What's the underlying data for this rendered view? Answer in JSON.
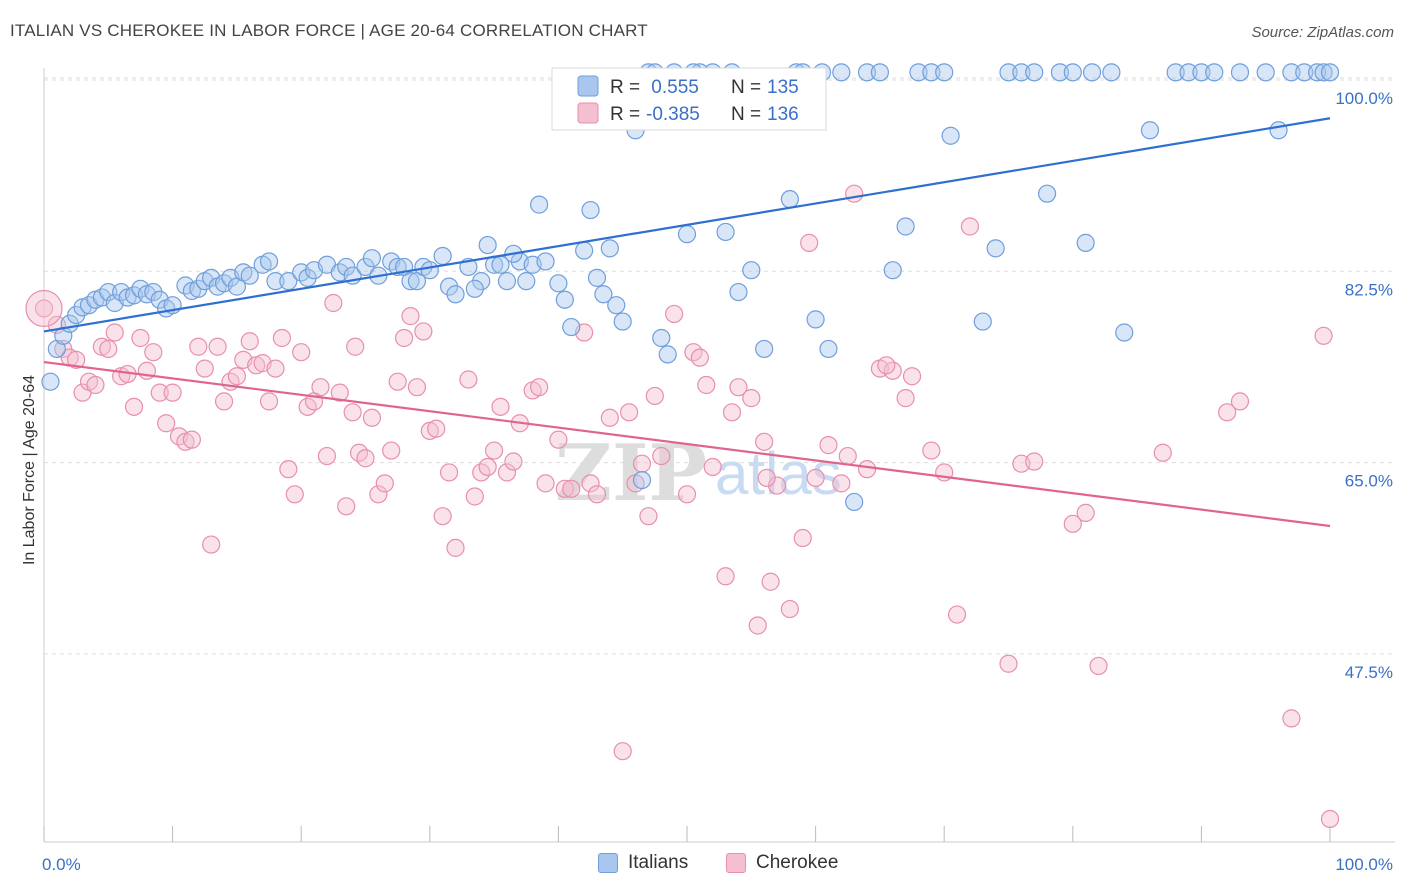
{
  "title": "ITALIAN VS CHEROKEE IN LABOR FORCE | AGE 20-64 CORRELATION CHART",
  "source": "Source: ZipAtlas.com",
  "watermark": {
    "zip": "ZIP",
    "atlas": "atlas"
  },
  "colors": {
    "blue": "#6f9fdc",
    "blue_fill": "#a9c7ee",
    "blue_line": "#2f6fd0",
    "pink": "#e78fae",
    "pink_fill": "#f4bfd1",
    "pink_line": "#e0648f",
    "tick_text": "#3a70c8",
    "grid": "#dddddd"
  },
  "legend": {
    "rows": [
      {
        "r_label": "R =",
        "r_value": " 0.555",
        "n_label": "N =",
        "n_value": "135"
      },
      {
        "r_label": "R =",
        "r_value": "-0.385",
        "n_label": "N =",
        "n_value": "136"
      }
    ]
  },
  "chart_data": {
    "type": "scatter",
    "xlabel": "",
    "ylabel": "In Labor Force | Age 20-64",
    "xlim": [
      0,
      100
    ],
    "ylim": [
      32,
      102
    ],
    "x_tick_labels": [
      {
        "value": 0,
        "label": "0.0%"
      },
      {
        "value": 100,
        "label": "100.0%"
      }
    ],
    "y_tick_labels": [
      {
        "value": 100,
        "label": "100.0%"
      },
      {
        "value": 82.5,
        "label": "82.5%"
      },
      {
        "value": 65,
        "label": "65.0%"
      },
      {
        "value": 47.5,
        "label": "47.5%"
      }
    ],
    "grid": true,
    "legend_placement": "top-center",
    "series": [
      {
        "name": "Italians",
        "color": "#6f9fdc",
        "trend": [
          [
            0,
            77.0
          ],
          [
            100,
            96.5
          ]
        ],
        "points": [
          [
            0.5,
            72.4
          ],
          [
            1,
            75.4
          ],
          [
            1.5,
            76.6
          ],
          [
            2,
            77.7
          ],
          [
            2.5,
            78.5
          ],
          [
            3,
            79.2
          ],
          [
            3.5,
            79.4
          ],
          [
            4,
            79.9
          ],
          [
            4.5,
            80.1
          ],
          [
            5,
            80.6
          ],
          [
            5.5,
            79.6
          ],
          [
            6,
            80.6
          ],
          [
            6.5,
            80.1
          ],
          [
            7,
            80.3
          ],
          [
            7.5,
            80.9
          ],
          [
            8,
            80.4
          ],
          [
            8.5,
            80.6
          ],
          [
            9,
            79.9
          ],
          [
            9.5,
            79.1
          ],
          [
            10,
            79.4
          ],
          [
            11,
            81.2
          ],
          [
            11.5,
            80.7
          ],
          [
            12,
            80.9
          ],
          [
            12.5,
            81.6
          ],
          [
            13,
            81.9
          ],
          [
            13.5,
            81.1
          ],
          [
            14,
            81.4
          ],
          [
            14.5,
            81.9
          ],
          [
            15,
            81.1
          ],
          [
            15.5,
            82.4
          ],
          [
            16,
            82.1
          ],
          [
            17,
            83.1
          ],
          [
            17.5,
            83.4
          ],
          [
            18,
            81.6
          ],
          [
            19,
            81.6
          ],
          [
            20,
            82.4
          ],
          [
            20.5,
            81.9
          ],
          [
            21,
            82.6
          ],
          [
            22,
            83.1
          ],
          [
            23,
            82.4
          ],
          [
            23.5,
            82.9
          ],
          [
            24,
            82.1
          ],
          [
            25,
            82.9
          ],
          [
            25.5,
            83.7
          ],
          [
            26,
            82.1
          ],
          [
            27,
            83.4
          ],
          [
            27.5,
            82.9
          ],
          [
            28,
            82.9
          ],
          [
            28.5,
            81.6
          ],
          [
            29,
            81.6
          ],
          [
            29.5,
            82.9
          ],
          [
            30,
            82.6
          ],
          [
            31,
            83.9
          ],
          [
            31.5,
            81.1
          ],
          [
            32,
            80.4
          ],
          [
            33,
            82.9
          ],
          [
            34,
            81.6
          ],
          [
            34.5,
            84.9
          ],
          [
            35,
            83.1
          ],
          [
            35.5,
            83.1
          ],
          [
            36,
            81.6
          ],
          [
            37,
            83.4
          ],
          [
            37.5,
            81.6
          ],
          [
            38,
            83.1
          ],
          [
            38.5,
            88.6
          ],
          [
            39,
            83.4
          ],
          [
            40,
            81.4
          ],
          [
            40.5,
            79.9
          ],
          [
            41,
            77.4
          ],
          [
            42,
            84.4
          ],
          [
            42.5,
            88.1
          ],
          [
            43,
            81.9
          ],
          [
            43.5,
            80.4
          ],
          [
            44,
            84.6
          ],
          [
            45,
            77.9
          ],
          [
            46,
            95.4
          ],
          [
            46.5,
            63.4
          ],
          [
            47,
            100.7
          ],
          [
            48,
            76.4
          ],
          [
            48.5,
            74.9
          ],
          [
            49,
            100.7
          ],
          [
            50,
            85.9
          ],
          [
            51,
            100.7
          ],
          [
            52,
            100.7
          ],
          [
            53,
            86.1
          ],
          [
            54,
            80.6
          ],
          [
            55,
            82.6
          ],
          [
            56,
            75.4
          ],
          [
            58,
            89.1
          ],
          [
            58.5,
            100.7
          ],
          [
            59,
            100.7
          ],
          [
            60,
            78.1
          ],
          [
            61,
            75.4
          ],
          [
            62,
            100.7
          ],
          [
            63,
            61.4
          ],
          [
            64,
            100.7
          ],
          [
            65,
            100.7
          ],
          [
            67,
            86.6
          ],
          [
            68,
            100.7
          ],
          [
            69,
            100.7
          ],
          [
            70,
            100.7
          ],
          [
            73,
            77.9
          ],
          [
            75,
            100.7
          ],
          [
            76,
            100.7
          ],
          [
            78,
            89.6
          ],
          [
            79,
            100.7
          ],
          [
            80,
            100.7
          ],
          [
            81,
            85.1
          ],
          [
            83,
            100.7
          ],
          [
            86,
            95.4
          ],
          [
            88,
            100.7
          ],
          [
            89,
            100.7
          ],
          [
            90,
            100.7
          ],
          [
            93,
            100.7
          ],
          [
            95,
            100.7
          ],
          [
            97,
            100.7
          ],
          [
            98,
            100.7
          ],
          [
            99,
            100.7
          ],
          [
            99.5,
            100.7
          ],
          [
            100,
            100.7
          ],
          [
            33.5,
            80.9
          ],
          [
            36.5,
            84.1
          ],
          [
            44.5,
            79.4
          ],
          [
            47.5,
            100.7
          ],
          [
            50.5,
            100.7
          ],
          [
            53.5,
            100.7
          ],
          [
            60.5,
            100.7
          ],
          [
            66,
            82.6
          ],
          [
            70.5,
            94.9
          ],
          [
            74,
            84.6
          ],
          [
            77,
            100.7
          ],
          [
            81.5,
            100.7
          ],
          [
            84,
            76.9
          ],
          [
            91,
            100.7
          ],
          [
            96,
            95.4
          ]
        ]
      },
      {
        "name": "Cherokee",
        "color": "#e78fae",
        "trend": [
          [
            0,
            74.2
          ],
          [
            100,
            59.2
          ]
        ],
        "points": [
          [
            0,
            79.1
          ],
          [
            1,
            77.6
          ],
          [
            1.5,
            75.4
          ],
          [
            2,
            74.6
          ],
          [
            2.5,
            74.4
          ],
          [
            3,
            71.4
          ],
          [
            3.5,
            72.4
          ],
          [
            4,
            72.1
          ],
          [
            4.5,
            75.6
          ],
          [
            5,
            75.4
          ],
          [
            5.5,
            76.9
          ],
          [
            6,
            72.9
          ],
          [
            6.5,
            73.1
          ],
          [
            7,
            70.1
          ],
          [
            7.5,
            76.4
          ],
          [
            8,
            73.4
          ],
          [
            8.5,
            75.1
          ],
          [
            9,
            71.4
          ],
          [
            9.5,
            68.6
          ],
          [
            10,
            71.4
          ],
          [
            10.5,
            67.4
          ],
          [
            11,
            66.9
          ],
          [
            11.5,
            67.1
          ],
          [
            12,
            75.6
          ],
          [
            12.5,
            73.6
          ],
          [
            13,
            57.5
          ],
          [
            13.5,
            75.6
          ],
          [
            14,
            70.6
          ],
          [
            14.5,
            72.4
          ],
          [
            15,
            72.9
          ],
          [
            15.5,
            74.4
          ],
          [
            16,
            76.1
          ],
          [
            16.5,
            73.9
          ],
          [
            17,
            74.1
          ],
          [
            17.5,
            70.6
          ],
          [
            18,
            73.6
          ],
          [
            18.5,
            76.4
          ],
          [
            19,
            64.4
          ],
          [
            19.5,
            62.1
          ],
          [
            20,
            75.1
          ],
          [
            20.5,
            70.1
          ],
          [
            21,
            70.6
          ],
          [
            21.5,
            71.9
          ],
          [
            22,
            65.6
          ],
          [
            22.5,
            79.6
          ],
          [
            23,
            71.4
          ],
          [
            23.5,
            61.0
          ],
          [
            24,
            69.6
          ],
          [
            24.5,
            65.9
          ],
          [
            25,
            65.4
          ],
          [
            25.5,
            69.1
          ],
          [
            26,
            62.1
          ],
          [
            26.5,
            63.1
          ],
          [
            27,
            66.1
          ],
          [
            27.5,
            72.4
          ],
          [
            28,
            76.4
          ],
          [
            28.5,
            78.4
          ],
          [
            29,
            71.9
          ],
          [
            29.5,
            77.0
          ],
          [
            30,
            67.9
          ],
          [
            30.5,
            68.1
          ],
          [
            31,
            60.1
          ],
          [
            31.5,
            64.1
          ],
          [
            32,
            57.2
          ],
          [
            33,
            72.6
          ],
          [
            33.5,
            61.9
          ],
          [
            34,
            64.1
          ],
          [
            35,
            66.1
          ],
          [
            35.5,
            70.1
          ],
          [
            36,
            64.1
          ],
          [
            36.5,
            65.1
          ],
          [
            37,
            68.6
          ],
          [
            38,
            71.6
          ],
          [
            38.5,
            71.9
          ],
          [
            39,
            63.1
          ],
          [
            40,
            67.1
          ],
          [
            40.5,
            62.6
          ],
          [
            41,
            62.6
          ],
          [
            42,
            76.9
          ],
          [
            42.5,
            63.1
          ],
          [
            43,
            62.1
          ],
          [
            44,
            69.1
          ],
          [
            45,
            38.6
          ],
          [
            45.5,
            69.6
          ],
          [
            46,
            63.1
          ],
          [
            47,
            60.1
          ],
          [
            47.5,
            71.1
          ],
          [
            48,
            65.6
          ],
          [
            49,
            78.6
          ],
          [
            50,
            62.1
          ],
          [
            50.5,
            75.1
          ],
          [
            51,
            74.6
          ],
          [
            51.5,
            72.1
          ],
          [
            52,
            64.6
          ],
          [
            53,
            54.6
          ],
          [
            53.5,
            69.6
          ],
          [
            54,
            71.9
          ],
          [
            55,
            70.9
          ],
          [
            55.5,
            50.1
          ],
          [
            56,
            66.9
          ],
          [
            56.5,
            54.1
          ],
          [
            57,
            62.9
          ],
          [
            58,
            51.6
          ],
          [
            59,
            58.1
          ],
          [
            59.5,
            85.1
          ],
          [
            60,
            63.6
          ],
          [
            61,
            66.6
          ],
          [
            62,
            63.1
          ],
          [
            63,
            89.6
          ],
          [
            64,
            64.4
          ],
          [
            65,
            73.6
          ],
          [
            66,
            73.4
          ],
          [
            67,
            70.9
          ],
          [
            67.5,
            72.9
          ],
          [
            69,
            66.1
          ],
          [
            70,
            64.1
          ],
          [
            71,
            51.1
          ],
          [
            72,
            86.6
          ],
          [
            75,
            46.6
          ],
          [
            76,
            64.9
          ],
          [
            77,
            65.1
          ],
          [
            80,
            59.4
          ],
          [
            81,
            60.4
          ],
          [
            82,
            46.4
          ],
          [
            87,
            65.9
          ],
          [
            92,
            69.6
          ],
          [
            93,
            70.6
          ],
          [
            97,
            41.6
          ],
          [
            100,
            32.4
          ],
          [
            99.5,
            76.6
          ],
          [
            24.2,
            75.6
          ],
          [
            34.5,
            64.6
          ],
          [
            46.5,
            64.9
          ],
          [
            56.2,
            63.6
          ],
          [
            62.5,
            65.6
          ],
          [
            65.5,
            73.9
          ]
        ]
      }
    ]
  },
  "bottom_legend": [
    {
      "label": "Italians",
      "color": "#a9c7ee",
      "border": "#6f9fdc"
    },
    {
      "label": "Cherokee",
      "color": "#f4bfd1",
      "border": "#e78fae"
    }
  ]
}
